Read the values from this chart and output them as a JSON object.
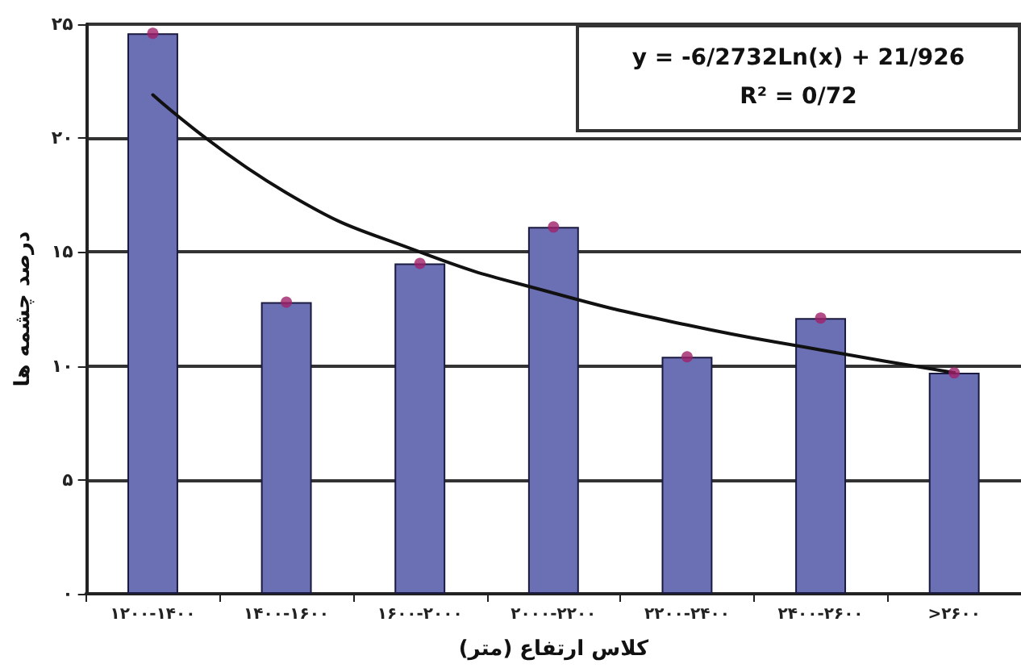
{
  "chart_data": {
    "type": "bar",
    "xlabel": "کلاس ارتفاع (متر)",
    "ylabel": "درصد چشمه ها",
    "categories": [
      "۱۲۰۰-۱۴۰۰",
      "۱۴۰۰-۱۶۰۰",
      "۱۶۰۰-۲۰۰۰",
      "۲۰۰۰-۲۲۰۰",
      "۲۲۰۰-۲۴۰۰",
      "۲۴۰۰-۲۶۰۰",
      ">۲۶۰۰"
    ],
    "series": [
      {
        "color": "#6b6fb3",
        "values": [
          24.6,
          12.8,
          14.5,
          16.1,
          10.4,
          12.1,
          9.7
        ]
      },
      {
        "type": "scatter",
        "color": "#a0206a",
        "marker": "circle",
        "x": [
          "۱۲۰۰-۱۴۰۰",
          "۱۴۰۰-۱۶۰۰",
          "۱۶۰۰-۲۰۰۰",
          "۲۰۰۰-۲۲۰۰",
          "۲۲۰۰-۲۴۰۰",
          "۲۴۰۰-۲۶۰۰",
          ">۲۶۰۰"
        ],
        "values": [
          24.6,
          12.8,
          14.5,
          16.1,
          10.4,
          12.1,
          9.7
        ]
      },
      {
        "type": "line",
        "color": "#111111",
        "marker": "none",
        "x": [
          "۱۲۰۰-۱۴۰۰",
          "۱۴۰۰-۱۶۰۰",
          "۱۶۰۰-۲۰۰۰",
          "۲۰۰۰-۲۲۰۰",
          "۲۲۰۰-۲۴۰۰",
          "۲۴۰۰-۲۶۰۰",
          ">۲۶۰۰"
        ],
        "values": [
          21.9,
          17.6,
          15.0,
          13.2,
          11.8,
          10.7,
          9.7
        ]
      }
    ],
    "ylim": [
      0,
      25
    ],
    "yticks": [
      {
        "value": 0,
        "label": "۰"
      },
      {
        "value": 5,
        "label": "۵"
      },
      {
        "value": 10,
        "label": "۱۰"
      },
      {
        "value": 15,
        "label": "۱۵"
      },
      {
        "value": 20,
        "label": "۲۰"
      },
      {
        "value": 25,
        "label": "۲۵"
      }
    ],
    "grid": "y",
    "legend": false,
    "annotations": [
      "y = -6/2732Ln(x) + 21/926",
      "R² = 0/72"
    ]
  }
}
